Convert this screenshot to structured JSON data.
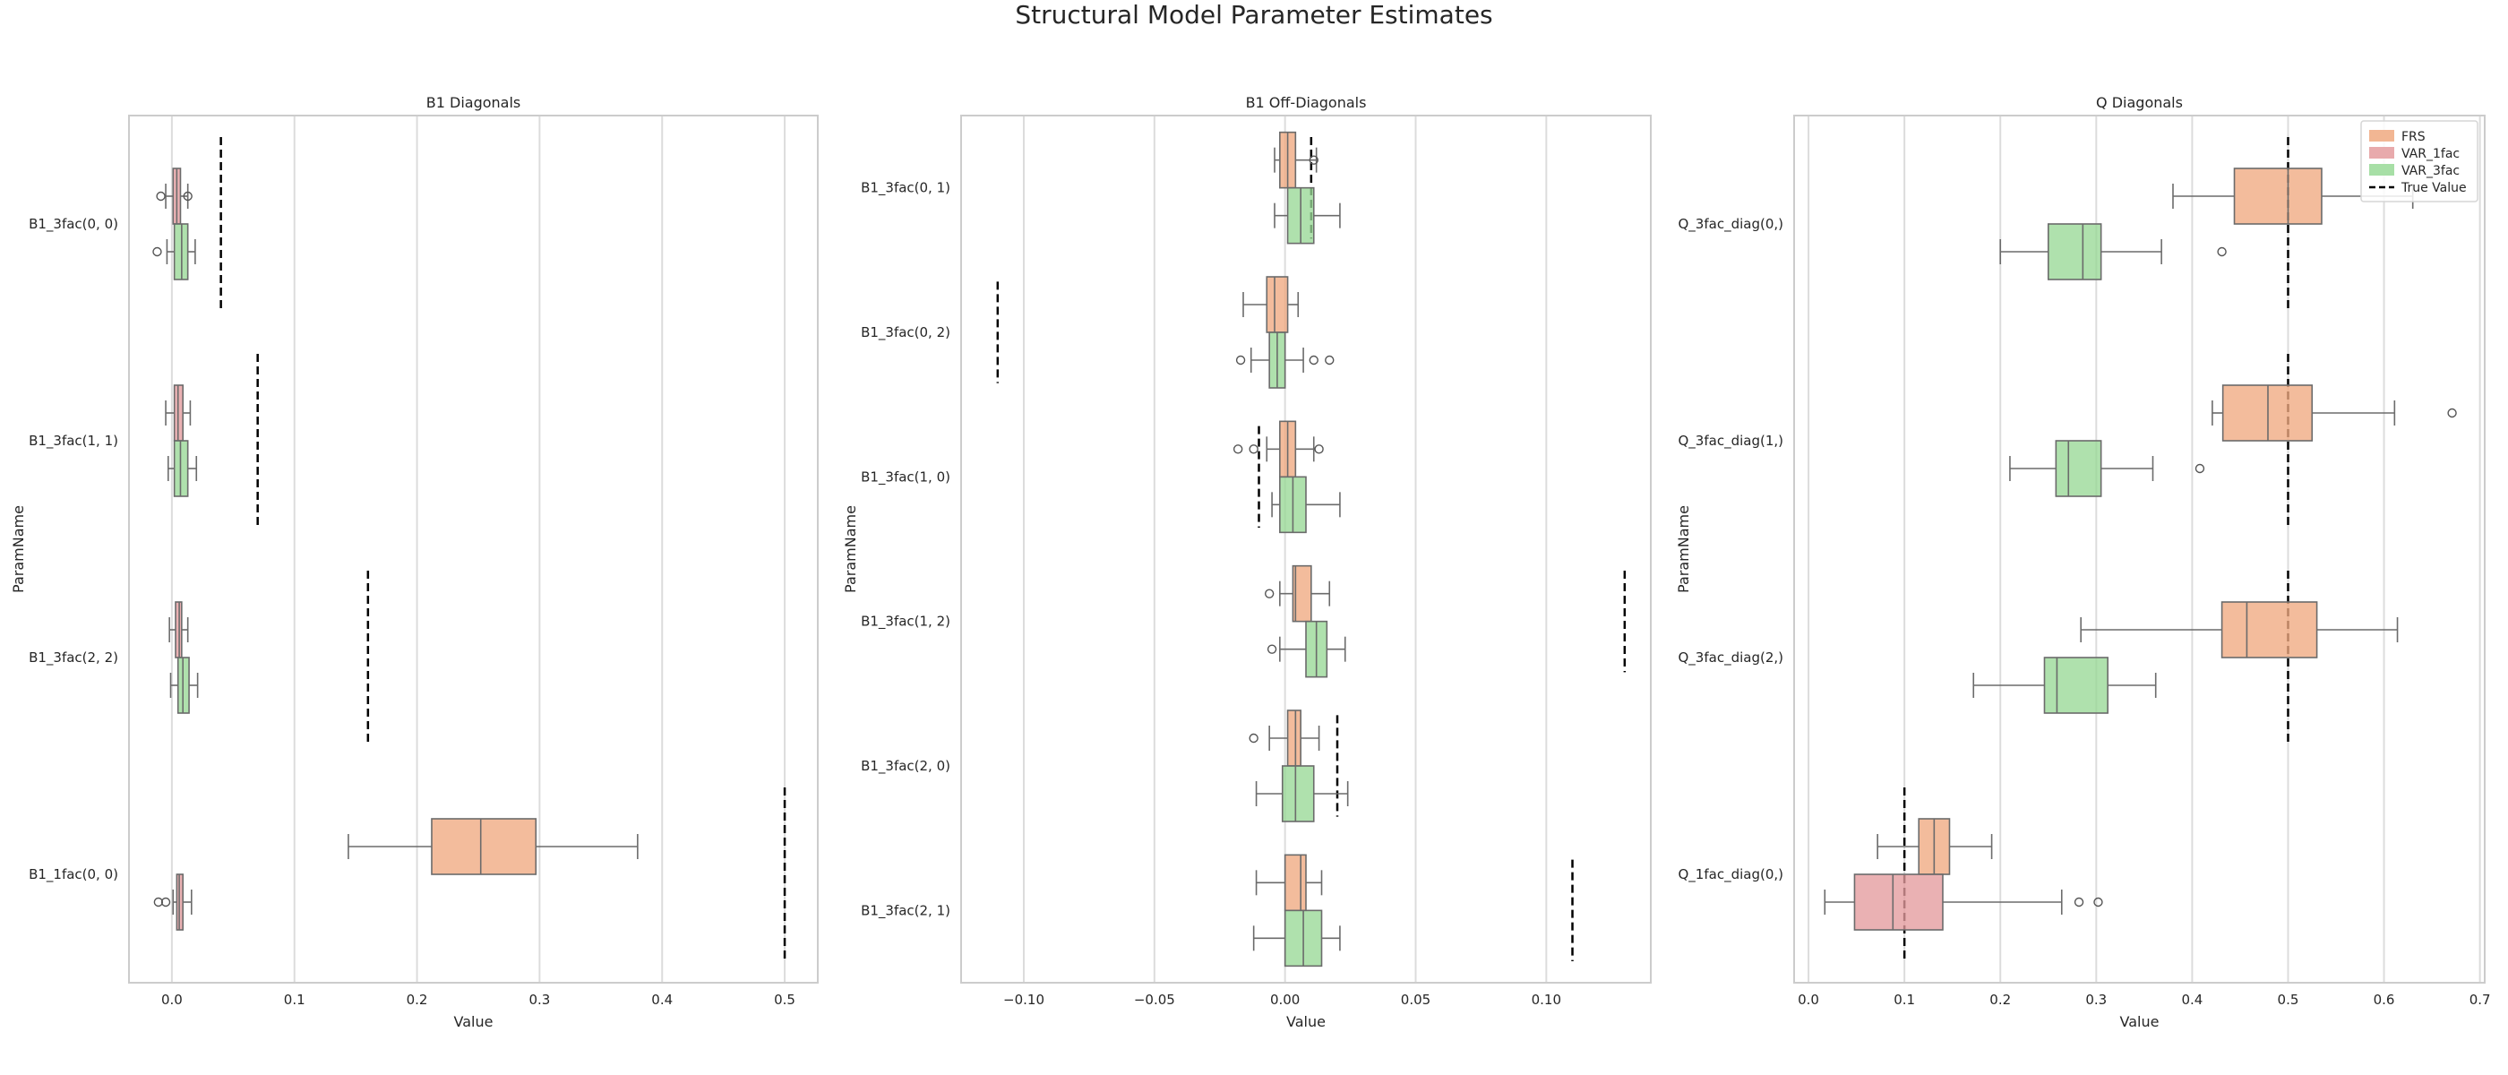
{
  "figure": {
    "title": "Structural Model Parameter Estimates"
  },
  "legend": {
    "placement": "upper-right of third panel",
    "entries": [
      {
        "label": "FRS",
        "color": "#f0a980"
      },
      {
        "label": "VAR_1fac",
        "color": "#e49b9e"
      },
      {
        "label": "VAR_3fac",
        "color": "#98d996"
      },
      {
        "label": "True Value",
        "style": "dashed",
        "color": "#000000"
      }
    ]
  },
  "chart_data": [
    {
      "type": "box",
      "orientation": "horizontal",
      "title": "B1 Diagonals",
      "xlabel": "Value",
      "ylabel": "ParamName",
      "xlim": [
        -0.035,
        0.527
      ],
      "xticks": [
        0.0,
        0.1,
        0.2,
        0.3,
        0.4,
        0.5
      ],
      "xtick_labels": [
        "0.0",
        "0.1",
        "0.2",
        "0.3",
        "0.4",
        "0.5"
      ],
      "grid": "vertical",
      "categories": [
        "B1_3fac(0, 0)",
        "B1_3fac(1, 1)",
        "B1_3fac(2, 2)",
        "B1_1fac(0, 0)"
      ],
      "groups": [
        {
          "label": "B1_3fac(0, 0)",
          "true_value": 0.04,
          "boxes": [
            {
              "series": "VAR_1fac",
              "slot": 0,
              "whislo": -0.005,
              "q1": 0.001,
              "med": 0.004,
              "q3": 0.007,
              "whishi": 0.013,
              "fliers": [
                -0.009,
                0.013
              ]
            },
            {
              "series": "VAR_3fac",
              "slot": 1,
              "whislo": -0.004,
              "q1": 0.002,
              "med": 0.008,
              "q3": 0.013,
              "whishi": 0.019,
              "fliers": [
                -0.012
              ]
            }
          ]
        },
        {
          "label": "B1_3fac(1, 1)",
          "true_value": 0.07,
          "boxes": [
            {
              "series": "VAR_1fac",
              "slot": 0,
              "whislo": -0.005,
              "q1": 0.002,
              "med": 0.005,
              "q3": 0.009,
              "whishi": 0.015,
              "fliers": []
            },
            {
              "series": "VAR_3fac",
              "slot": 1,
              "whislo": -0.003,
              "q1": 0.002,
              "med": 0.007,
              "q3": 0.013,
              "whishi": 0.02,
              "fliers": []
            }
          ]
        },
        {
          "label": "B1_3fac(2, 2)",
          "true_value": 0.16,
          "boxes": [
            {
              "series": "VAR_1fac",
              "slot": 0,
              "whislo": -0.002,
              "q1": 0.003,
              "med": 0.006,
              "q3": 0.008,
              "whishi": 0.013,
              "fliers": []
            },
            {
              "series": "VAR_3fac",
              "slot": 1,
              "whislo": -0.001,
              "q1": 0.005,
              "med": 0.009,
              "q3": 0.014,
              "whishi": 0.021,
              "fliers": []
            }
          ]
        },
        {
          "label": "B1_1fac(0, 0)",
          "true_value": 0.5,
          "boxes": [
            {
              "series": "FRS",
              "slot": 0,
              "whislo": 0.144,
              "q1": 0.212,
              "med": 0.252,
              "q3": 0.297,
              "whishi": 0.38,
              "fliers": []
            },
            {
              "series": "VAR_1fac",
              "slot": 1,
              "whislo": 0.001,
              "q1": 0.004,
              "med": 0.006,
              "q3": 0.009,
              "whishi": 0.016,
              "fliers": [
                -0.011,
                -0.005
              ]
            }
          ]
        }
      ]
    },
    {
      "type": "box",
      "orientation": "horizontal",
      "title": "B1 Off-Diagonals",
      "xlabel": "Value",
      "ylabel": "ParamName",
      "xlim": [
        -0.124,
        0.14
      ],
      "xticks": [
        -0.1,
        -0.05,
        0.0,
        0.05,
        0.1
      ],
      "xtick_labels": [
        "−0.10",
        "−0.05",
        "0.00",
        "0.05",
        "0.10"
      ],
      "grid": "vertical",
      "categories": [
        "B1_3fac(0, 1)",
        "B1_3fac(0, 2)",
        "B1_3fac(1, 0)",
        "B1_3fac(1, 2)",
        "B1_3fac(2, 0)",
        "B1_3fac(2, 1)"
      ],
      "groups": [
        {
          "label": "B1_3fac(0, 1)",
          "true_value": 0.01,
          "boxes": [
            {
              "series": "FRS",
              "slot": 0,
              "whislo": -0.004,
              "q1": -0.002,
              "med": 0.001,
              "q3": 0.004,
              "whishi": 0.012,
              "fliers": [
                0.011
              ]
            },
            {
              "series": "VAR_3fac",
              "slot": 1,
              "whislo": -0.004,
              "q1": 0.001,
              "med": 0.006,
              "q3": 0.011,
              "whishi": 0.021,
              "fliers": []
            }
          ]
        },
        {
          "label": "B1_3fac(0, 2)",
          "true_value": -0.11,
          "boxes": [
            {
              "series": "FRS",
              "slot": 0,
              "whislo": -0.016,
              "q1": -0.007,
              "med": -0.004,
              "q3": 0.001,
              "whishi": 0.005,
              "fliers": []
            },
            {
              "series": "VAR_3fac",
              "slot": 1,
              "whislo": -0.013,
              "q1": -0.006,
              "med": -0.003,
              "q3": 0.0,
              "whishi": 0.007,
              "fliers": [
                -0.017,
                0.011,
                0.017
              ]
            }
          ]
        },
        {
          "label": "B1_3fac(1, 0)",
          "true_value": -0.01,
          "boxes": [
            {
              "series": "FRS",
              "slot": 0,
              "whislo": -0.007,
              "q1": -0.002,
              "med": 0.001,
              "q3": 0.004,
              "whishi": 0.011,
              "fliers": [
                -0.018,
                -0.012,
                0.013
              ]
            },
            {
              "series": "VAR_3fac",
              "slot": 1,
              "whislo": -0.005,
              "q1": -0.002,
              "med": 0.003,
              "q3": 0.008,
              "whishi": 0.021,
              "fliers": []
            }
          ]
        },
        {
          "label": "B1_3fac(1, 2)",
          "true_value": 0.13,
          "boxes": [
            {
              "series": "FRS",
              "slot": 0,
              "whislo": -0.002,
              "q1": 0.003,
              "med": 0.004,
              "q3": 0.01,
              "whishi": 0.017,
              "fliers": [
                -0.006
              ]
            },
            {
              "series": "VAR_3fac",
              "slot": 1,
              "whislo": -0.002,
              "q1": 0.008,
              "med": 0.012,
              "q3": 0.016,
              "whishi": 0.023,
              "fliers": [
                -0.005
              ]
            }
          ]
        },
        {
          "label": "B1_3fac(2, 0)",
          "true_value": 0.02,
          "boxes": [
            {
              "series": "FRS",
              "slot": 0,
              "whislo": -0.006,
              "q1": 0.001,
              "med": 0.004,
              "q3": 0.006,
              "whishi": 0.013,
              "fliers": [
                -0.012
              ]
            },
            {
              "series": "VAR_3fac",
              "slot": 1,
              "whislo": -0.011,
              "q1": -0.001,
              "med": 0.004,
              "q3": 0.011,
              "whishi": 0.024,
              "fliers": []
            }
          ]
        },
        {
          "label": "B1_3fac(2, 1)",
          "true_value": 0.11,
          "boxes": [
            {
              "series": "FRS",
              "slot": 0,
              "whislo": -0.011,
              "q1": 0.0,
              "med": 0.006,
              "q3": 0.008,
              "whishi": 0.014,
              "fliers": []
            },
            {
              "series": "VAR_3fac",
              "slot": 1,
              "whislo": -0.012,
              "q1": 0.0,
              "med": 0.007,
              "q3": 0.014,
              "whishi": 0.021,
              "fliers": []
            }
          ]
        }
      ]
    },
    {
      "type": "box",
      "orientation": "horizontal",
      "title": "Q Diagonals",
      "xlabel": "Value",
      "ylabel": "ParamName",
      "xlim": [
        -0.015,
        0.705
      ],
      "xticks": [
        0.0,
        0.1,
        0.2,
        0.3,
        0.4,
        0.5,
        0.6,
        0.7
      ],
      "xtick_labels": [
        "0.0",
        "0.1",
        "0.2",
        "0.3",
        "0.4",
        "0.5",
        "0.6",
        "0.7"
      ],
      "grid": "vertical",
      "categories": [
        "Q_3fac_diag(0,)",
        "Q_3fac_diag(1,)",
        "Q_3fac_diag(2,)",
        "Q_1fac_diag(0,)"
      ],
      "groups": [
        {
          "label": "Q_3fac_diag(0,)",
          "true_value": 0.5,
          "boxes": [
            {
              "series": "FRS",
              "slot": 0,
              "whislo": 0.38,
              "q1": 0.444,
              "med": 0.5,
              "q3": 0.535,
              "whishi": 0.63,
              "fliers": []
            },
            {
              "series": "VAR_3fac",
              "slot": 1,
              "whislo": 0.2,
              "q1": 0.25,
              "med": 0.286,
              "q3": 0.305,
              "whishi": 0.368,
              "fliers": [
                0.431
              ]
            }
          ]
        },
        {
          "label": "Q_3fac_diag(1,)",
          "true_value": 0.5,
          "boxes": [
            {
              "series": "FRS",
              "slot": 0,
              "whislo": 0.421,
              "q1": 0.432,
              "med": 0.479,
              "q3": 0.525,
              "whishi": 0.611,
              "fliers": [
                0.671
              ]
            },
            {
              "series": "VAR_3fac",
              "slot": 1,
              "whislo": 0.21,
              "q1": 0.258,
              "med": 0.271,
              "q3": 0.305,
              "whishi": 0.359,
              "fliers": [
                0.408
              ]
            }
          ]
        },
        {
          "label": "Q_3fac_diag(2,)",
          "true_value": 0.5,
          "boxes": [
            {
              "series": "FRS",
              "slot": 0,
              "whislo": 0.284,
              "q1": 0.431,
              "med": 0.457,
              "q3": 0.53,
              "whishi": 0.614,
              "fliers": []
            },
            {
              "series": "VAR_3fac",
              "slot": 1,
              "whislo": 0.172,
              "q1": 0.246,
              "med": 0.259,
              "q3": 0.312,
              "whishi": 0.362,
              "fliers": []
            }
          ]
        },
        {
          "label": "Q_1fac_diag(0,)",
          "true_value": 0.1,
          "boxes": [
            {
              "series": "FRS",
              "slot": 0,
              "whislo": 0.072,
              "q1": 0.115,
              "med": 0.131,
              "q3": 0.147,
              "whishi": 0.191,
              "fliers": []
            },
            {
              "series": "VAR_1fac",
              "slot": 1,
              "whislo": 0.017,
              "q1": 0.048,
              "med": 0.088,
              "q3": 0.14,
              "whishi": 0.264,
              "fliers": [
                0.282,
                0.302
              ]
            }
          ]
        }
      ]
    }
  ]
}
